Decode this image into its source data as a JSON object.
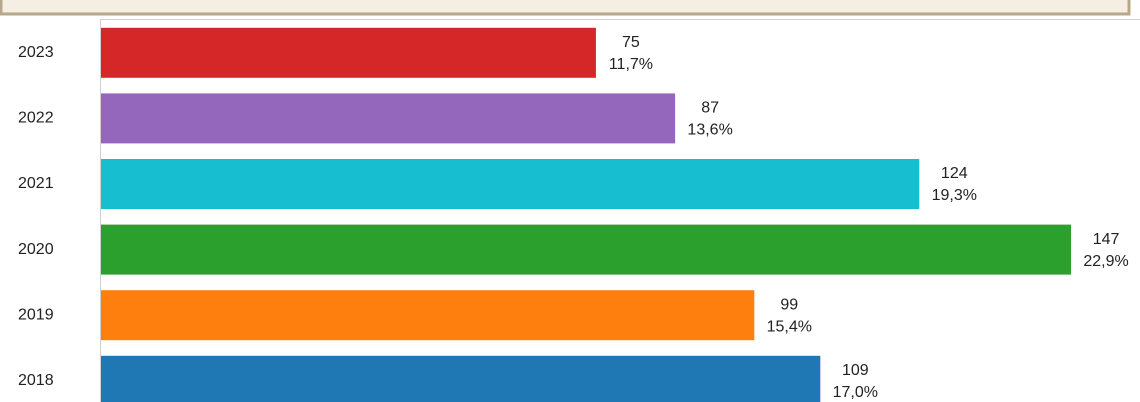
{
  "chart_data": {
    "type": "barh",
    "categories": [
      "2023",
      "2022",
      "2021",
      "2020",
      "2019",
      "2018"
    ],
    "values": [
      75,
      87,
      124,
      147,
      99,
      109
    ],
    "shares": [
      11.7,
      13.6,
      19.3,
      22.9,
      15.4,
      17.0
    ],
    "share_labels": [
      "11,7%",
      "13,6%",
      "19,3%",
      "22,9%",
      "15,4%",
      "17,0%"
    ],
    "colors": [
      "#d62728",
      "#9467bd",
      "#17becf",
      "#2ca02c",
      "#ff7f0e",
      "#1f77b4"
    ],
    "xlim": [
      0,
      157.6
    ]
  }
}
